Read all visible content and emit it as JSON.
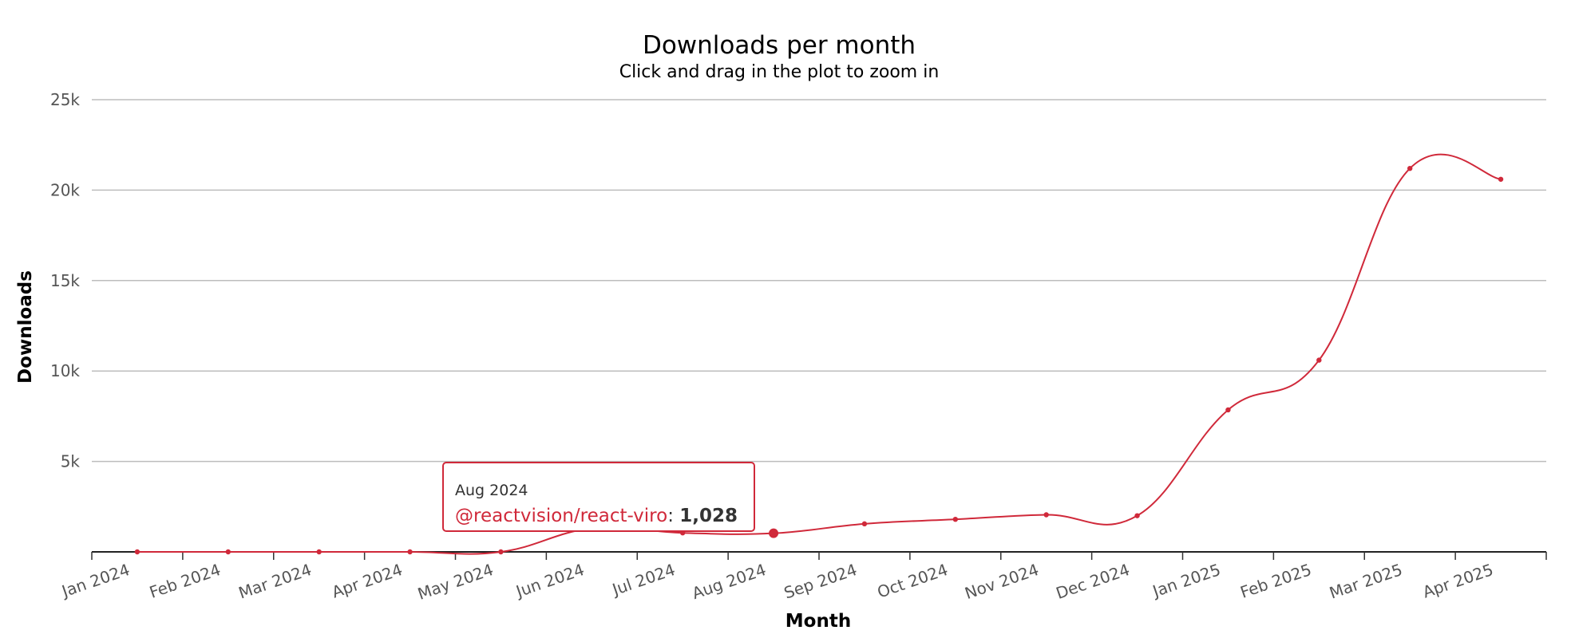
{
  "chart_data": {
    "type": "line",
    "title": "Downloads per month",
    "subtitle": "Click and drag in the plot to zoom in",
    "xlabel": "Month",
    "ylabel": "Downloads",
    "categories": [
      "Jan 2024",
      "Feb 2024",
      "Mar 2024",
      "Apr 2024",
      "May 2024",
      "Jun 2024",
      "Jul 2024",
      "Aug 2024",
      "Sep 2024",
      "Oct 2024",
      "Nov 2024",
      "Dec 2024",
      "Jan 2025",
      "Feb 2025",
      "Mar 2025",
      "Apr 2025"
    ],
    "ylim": [
      0,
      25000
    ],
    "yticks": [
      {
        "value": 5000,
        "label": "5k"
      },
      {
        "value": 10000,
        "label": "10k"
      },
      {
        "value": 15000,
        "label": "15k"
      },
      {
        "value": 20000,
        "label": "20k"
      },
      {
        "value": 25000,
        "label": "25k"
      }
    ],
    "grid": true,
    "legend": "none",
    "series": [
      {
        "name": "@reactvision/react-viro",
        "color": "#d0293a",
        "values": [
          0,
          0,
          0,
          0,
          0,
          1300,
          1050,
          1028,
          1550,
          1800,
          2050,
          2000,
          7850,
          10600,
          21200,
          20600
        ]
      }
    ],
    "tooltip": {
      "category": "Aug 2024",
      "series": "@reactvision/react-viro",
      "value": "1,028"
    }
  }
}
